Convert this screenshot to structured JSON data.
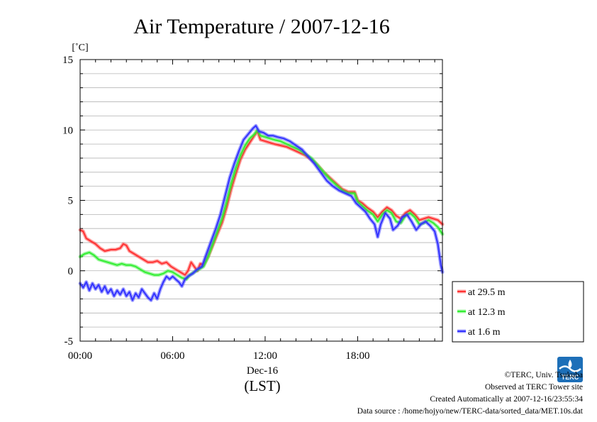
{
  "title": "Air Temperature / 2007-12-16",
  "y_unit": "[˚C]",
  "x_date_label": "Dec-16",
  "x_timezone_label": "(LST)",
  "chart_data": {
    "type": "line",
    "title": "Air Temperature / 2007-12-16",
    "ylabel": "[˚C]",
    "xlabel": "(LST)",
    "x_unit": "hours",
    "xlim": [
      0,
      23.5
    ],
    "ylim": [
      -5,
      15
    ],
    "xticks": [
      "00:00",
      "06:00",
      "12:00",
      "18:00"
    ],
    "yticks": [
      "-5",
      "0",
      "5",
      "10",
      "15"
    ],
    "grid": true,
    "legend_position": "right-bottom",
    "series": [
      {
        "name": "at 29.5 m",
        "color": "#ff3333",
        "points": [
          [
            0,
            2.9
          ],
          [
            0.2,
            2.8
          ],
          [
            0.4,
            2.3
          ],
          [
            0.7,
            2.1
          ],
          [
            1.0,
            1.9
          ],
          [
            1.3,
            1.6
          ],
          [
            1.6,
            1.4
          ],
          [
            2.0,
            1.5
          ],
          [
            2.3,
            1.5
          ],
          [
            2.6,
            1.6
          ],
          [
            2.8,
            1.9
          ],
          [
            3.0,
            1.8
          ],
          [
            3.2,
            1.4
          ],
          [
            3.5,
            1.2
          ],
          [
            3.8,
            1.0
          ],
          [
            4.1,
            0.8
          ],
          [
            4.4,
            0.6
          ],
          [
            4.7,
            0.6
          ],
          [
            5.0,
            0.7
          ],
          [
            5.3,
            0.5
          ],
          [
            5.6,
            0.6
          ],
          [
            5.9,
            0.3
          ],
          [
            6.2,
            0.1
          ],
          [
            6.5,
            -0.1
          ],
          [
            6.8,
            -0.3
          ],
          [
            7.0,
            0.0
          ],
          [
            7.2,
            0.6
          ],
          [
            7.4,
            0.3
          ],
          [
            7.6,
            0.0
          ],
          [
            7.8,
            0.5
          ],
          [
            8.0,
            0.4
          ],
          [
            8.3,
            1.0
          ],
          [
            8.6,
            1.8
          ],
          [
            8.9,
            2.6
          ],
          [
            9.2,
            3.4
          ],
          [
            9.5,
            4.5
          ],
          [
            9.8,
            5.8
          ],
          [
            10.1,
            6.9
          ],
          [
            10.4,
            7.9
          ],
          [
            10.7,
            8.6
          ],
          [
            11.0,
            9.1
          ],
          [
            11.3,
            9.6
          ],
          [
            11.5,
            9.9
          ],
          [
            11.7,
            9.3
          ],
          [
            12.0,
            9.2
          ],
          [
            12.3,
            9.1
          ],
          [
            12.6,
            9.0
          ],
          [
            13.0,
            8.9
          ],
          [
            13.4,
            8.8
          ],
          [
            13.8,
            8.6
          ],
          [
            14.2,
            8.4
          ],
          [
            14.6,
            8.2
          ],
          [
            15.0,
            7.9
          ],
          [
            15.4,
            7.5
          ],
          [
            15.8,
            7.0
          ],
          [
            16.2,
            6.6
          ],
          [
            16.6,
            6.2
          ],
          [
            17.0,
            5.8
          ],
          [
            17.4,
            5.6
          ],
          [
            17.8,
            5.6
          ],
          [
            18.0,
            5.0
          ],
          [
            18.3,
            4.8
          ],
          [
            18.6,
            4.5
          ],
          [
            19.0,
            4.2
          ],
          [
            19.3,
            3.8
          ],
          [
            19.6,
            4.2
          ],
          [
            19.9,
            4.5
          ],
          [
            20.2,
            4.3
          ],
          [
            20.5,
            3.9
          ],
          [
            20.8,
            3.7
          ],
          [
            21.1,
            4.1
          ],
          [
            21.4,
            4.3
          ],
          [
            21.7,
            4.0
          ],
          [
            22.0,
            3.6
          ],
          [
            22.3,
            3.7
          ],
          [
            22.6,
            3.8
          ],
          [
            22.9,
            3.7
          ],
          [
            23.2,
            3.6
          ],
          [
            23.5,
            3.3
          ]
        ]
      },
      {
        "name": "at 12.3 m",
        "color": "#33ee33",
        "points": [
          [
            0,
            1.0
          ],
          [
            0.3,
            1.2
          ],
          [
            0.6,
            1.3
          ],
          [
            0.9,
            1.1
          ],
          [
            1.2,
            0.8
          ],
          [
            1.5,
            0.7
          ],
          [
            1.8,
            0.6
          ],
          [
            2.1,
            0.5
          ],
          [
            2.4,
            0.4
          ],
          [
            2.7,
            0.5
          ],
          [
            3.0,
            0.4
          ],
          [
            3.3,
            0.4
          ],
          [
            3.6,
            0.3
          ],
          [
            3.9,
            0.1
          ],
          [
            4.2,
            -0.1
          ],
          [
            4.5,
            -0.2
          ],
          [
            4.8,
            -0.3
          ],
          [
            5.1,
            -0.3
          ],
          [
            5.4,
            -0.2
          ],
          [
            5.7,
            0.0
          ],
          [
            6.0,
            -0.1
          ],
          [
            6.3,
            -0.3
          ],
          [
            6.6,
            -0.5
          ],
          [
            6.9,
            -0.6
          ],
          [
            7.1,
            -0.3
          ],
          [
            7.4,
            -0.1
          ],
          [
            7.7,
            0.1
          ],
          [
            8.0,
            0.3
          ],
          [
            8.3,
            1.0
          ],
          [
            8.6,
            1.9
          ],
          [
            8.9,
            2.8
          ],
          [
            9.2,
            3.7
          ],
          [
            9.5,
            4.9
          ],
          [
            9.8,
            6.2
          ],
          [
            10.1,
            7.3
          ],
          [
            10.4,
            8.2
          ],
          [
            10.7,
            8.9
          ],
          [
            11.0,
            9.4
          ],
          [
            11.3,
            9.7
          ],
          [
            11.5,
            10.0
          ],
          [
            11.7,
            9.6
          ],
          [
            12.0,
            9.5
          ],
          [
            12.3,
            9.4
          ],
          [
            12.6,
            9.3
          ],
          [
            13.0,
            9.2
          ],
          [
            13.4,
            9.0
          ],
          [
            13.8,
            8.8
          ],
          [
            14.2,
            8.6
          ],
          [
            14.6,
            8.3
          ],
          [
            15.0,
            8.0
          ],
          [
            15.4,
            7.5
          ],
          [
            15.8,
            7.0
          ],
          [
            16.2,
            6.5
          ],
          [
            16.6,
            6.1
          ],
          [
            17.0,
            5.7
          ],
          [
            17.4,
            5.5
          ],
          [
            17.8,
            5.5
          ],
          [
            18.0,
            4.9
          ],
          [
            18.3,
            4.6
          ],
          [
            18.6,
            4.3
          ],
          [
            19.0,
            4.0
          ],
          [
            19.3,
            3.5
          ],
          [
            19.6,
            4.0
          ],
          [
            19.9,
            4.3
          ],
          [
            20.2,
            4.1
          ],
          [
            20.5,
            3.5
          ],
          [
            20.8,
            3.4
          ],
          [
            21.1,
            3.9
          ],
          [
            21.4,
            4.1
          ],
          [
            21.7,
            3.8
          ],
          [
            22.0,
            3.3
          ],
          [
            22.3,
            3.4
          ],
          [
            22.6,
            3.6
          ],
          [
            22.9,
            3.4
          ],
          [
            23.2,
            3.1
          ],
          [
            23.5,
            2.6
          ]
        ]
      },
      {
        "name": "at 1.6 m",
        "color": "#3333ff",
        "points": [
          [
            0,
            -0.9
          ],
          [
            0.2,
            -1.2
          ],
          [
            0.4,
            -0.8
          ],
          [
            0.6,
            -1.4
          ],
          [
            0.8,
            -0.9
          ],
          [
            1.0,
            -1.3
          ],
          [
            1.2,
            -1.0
          ],
          [
            1.4,
            -1.5
          ],
          [
            1.6,
            -1.1
          ],
          [
            1.8,
            -1.6
          ],
          [
            2.0,
            -1.3
          ],
          [
            2.2,
            -1.8
          ],
          [
            2.4,
            -1.4
          ],
          [
            2.6,
            -1.7
          ],
          [
            2.8,
            -1.3
          ],
          [
            3.0,
            -1.8
          ],
          [
            3.2,
            -1.5
          ],
          [
            3.4,
            -2.1
          ],
          [
            3.6,
            -1.6
          ],
          [
            3.8,
            -1.9
          ],
          [
            4.0,
            -1.3
          ],
          [
            4.2,
            -1.6
          ],
          [
            4.4,
            -1.9
          ],
          [
            4.6,
            -2.1
          ],
          [
            4.8,
            -1.6
          ],
          [
            5.0,
            -2.0
          ],
          [
            5.2,
            -1.3
          ],
          [
            5.4,
            -0.8
          ],
          [
            5.6,
            -0.4
          ],
          [
            5.8,
            -0.6
          ],
          [
            6.0,
            -0.4
          ],
          [
            6.2,
            -0.6
          ],
          [
            6.4,
            -0.8
          ],
          [
            6.6,
            -1.1
          ],
          [
            6.8,
            -0.6
          ],
          [
            7.0,
            -0.4
          ],
          [
            7.3,
            -0.2
          ],
          [
            7.6,
            0.1
          ],
          [
            7.9,
            0.3
          ],
          [
            8.2,
            1.2
          ],
          [
            8.5,
            2.1
          ],
          [
            8.8,
            3.0
          ],
          [
            9.1,
            4.0
          ],
          [
            9.4,
            5.3
          ],
          [
            9.7,
            6.6
          ],
          [
            10.0,
            7.6
          ],
          [
            10.3,
            8.5
          ],
          [
            10.6,
            9.3
          ],
          [
            10.9,
            9.7
          ],
          [
            11.2,
            10.1
          ],
          [
            11.4,
            10.3
          ],
          [
            11.6,
            9.9
          ],
          [
            11.9,
            9.8
          ],
          [
            12.2,
            9.6
          ],
          [
            12.5,
            9.6
          ],
          [
            12.8,
            9.5
          ],
          [
            13.2,
            9.4
          ],
          [
            13.6,
            9.2
          ],
          [
            14.0,
            8.9
          ],
          [
            14.4,
            8.6
          ],
          [
            14.8,
            8.1
          ],
          [
            15.2,
            7.6
          ],
          [
            15.6,
            7.0
          ],
          [
            16.0,
            6.4
          ],
          [
            16.4,
            6.0
          ],
          [
            16.8,
            5.7
          ],
          [
            17.2,
            5.5
          ],
          [
            17.6,
            5.3
          ],
          [
            17.9,
            4.8
          ],
          [
            18.2,
            4.5
          ],
          [
            18.5,
            4.2
          ],
          [
            18.8,
            3.7
          ],
          [
            19.1,
            3.3
          ],
          [
            19.3,
            2.4
          ],
          [
            19.5,
            3.3
          ],
          [
            19.8,
            4.1
          ],
          [
            20.1,
            3.7
          ],
          [
            20.3,
            2.9
          ],
          [
            20.6,
            3.2
          ],
          [
            20.9,
            3.8
          ],
          [
            21.2,
            4.0
          ],
          [
            21.5,
            3.5
          ],
          [
            21.8,
            2.9
          ],
          [
            22.1,
            3.3
          ],
          [
            22.4,
            3.5
          ],
          [
            22.7,
            3.2
          ],
          [
            23.0,
            2.8
          ],
          [
            23.2,
            1.9
          ],
          [
            23.4,
            0.4
          ],
          [
            23.5,
            -0.1
          ]
        ]
      }
    ]
  },
  "footer": {
    "copyright": "©TERC, Univ. Tsukuba",
    "observed": "Observed at TERC Tower site",
    "created": "Created Automatically at 2007-12-16/23:55:34",
    "source": "Data source : /home/hojyo/new/TERC-data/sorted_data/MET.10s.dat"
  },
  "logo": {
    "text": "TERC",
    "color": "#1d6fb8"
  }
}
